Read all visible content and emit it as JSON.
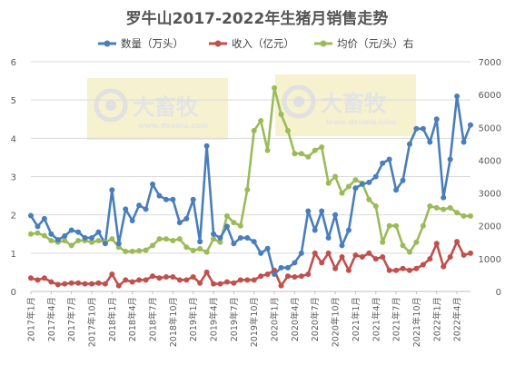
{
  "chart_data": {
    "type": "line",
    "title": "罗牛山2017-2022年生猪月销售走势",
    "x": [
      "2017年1月",
      "2017年2月",
      "2017年3月",
      "2017年4月",
      "2017年5月",
      "2017年6月",
      "2017年7月",
      "2017年8月",
      "2017年9月",
      "2017年10月",
      "2017年11月",
      "2017年12月",
      "2018年1月",
      "2018年2月",
      "2018年3月",
      "2018年4月",
      "2018年5月",
      "2018年6月",
      "2018年7月",
      "2018年8月",
      "2018年9月",
      "2018年10月",
      "2018年11月",
      "2018年12月",
      "2019年1月",
      "2019年2月",
      "2019年3月",
      "2019年4月",
      "2019年5月",
      "2019年6月",
      "2019年7月",
      "2019年8月",
      "2019年9月",
      "2019年10月",
      "2019年11月",
      "2019年12月",
      "2020年1月",
      "2020年2月",
      "2020年3月",
      "2020年4月",
      "2020年5月",
      "2020年6月",
      "2020年7月",
      "2020年8月",
      "2020年9月",
      "2020年10月",
      "2020年11月",
      "2020年12月",
      "2021年1月",
      "2021年2月",
      "2021年3月",
      "2021年4月",
      "2021年5月",
      "2021年6月",
      "2021年7月",
      "2021年8月",
      "2021年9月",
      "2021年10月",
      "2021年11月",
      "2021年12月",
      "2022年1月",
      "2022年2月",
      "2022年3月",
      "2022年4月",
      "2022年5月",
      "2022年6月"
    ],
    "x_tick_labels": [
      "2017年1月",
      "2017年4月",
      "2017年7月",
      "2017年10月",
      "2018年1月",
      "2018年4月",
      "2018年7月",
      "2018年10月",
      "2019年1月",
      "2019年4月",
      "2019年7月",
      "2019年10月",
      "2020年1月",
      "2020年4月",
      "2020年7月",
      "2020年10月",
      "2021年1月",
      "2021年4月",
      "2021年7月",
      "2021年10月",
      "2022年1月",
      "2022年4月"
    ],
    "y_left_ticks": [
      "0",
      "1",
      "2",
      "3",
      "4",
      "5",
      "6"
    ],
    "y_right_ticks": [
      "0",
      "1000",
      "2000",
      "3000",
      "4000",
      "5000",
      "6000",
      "7000"
    ],
    "ylim_left": [
      0,
      6
    ],
    "ylim_right": [
      0,
      7000
    ],
    "legend_position": "top",
    "series": [
      {
        "name": "数量（万头）",
        "axis": "left",
        "color": "#4a7ebb",
        "values": [
          1.98,
          1.7,
          1.9,
          1.5,
          1.35,
          1.45,
          1.6,
          1.55,
          1.4,
          1.4,
          1.55,
          1.25,
          2.65,
          1.25,
          2.15,
          1.85,
          2.25,
          2.15,
          2.8,
          2.5,
          2.4,
          2.4,
          1.8,
          1.9,
          2.4,
          1.3,
          3.8,
          1.5,
          1.4,
          1.7,
          1.25,
          1.4,
          1.4,
          1.3,
          1.0,
          1.12,
          0.45,
          0.62,
          0.62,
          0.75,
          1.0,
          2.1,
          1.6,
          2.1,
          1.4,
          2.0,
          1.2,
          1.6,
          2.7,
          2.8,
          2.85,
          3.0,
          3.35,
          3.45,
          2.65,
          2.9,
          3.85,
          4.25,
          4.25,
          3.9,
          4.5,
          2.45,
          3.45,
          5.1,
          3.9,
          4.35
        ]
      },
      {
        "name": "收入（亿元）",
        "axis": "left",
        "color": "#c0504d",
        "values": [
          0.35,
          0.3,
          0.35,
          0.25,
          0.18,
          0.2,
          0.22,
          0.22,
          0.2,
          0.2,
          0.22,
          0.2,
          0.45,
          0.15,
          0.3,
          0.25,
          0.3,
          0.3,
          0.4,
          0.35,
          0.38,
          0.38,
          0.3,
          0.3,
          0.38,
          0.22,
          0.5,
          0.2,
          0.2,
          0.25,
          0.22,
          0.3,
          0.3,
          0.3,
          0.4,
          0.45,
          0.55,
          0.15,
          0.4,
          0.38,
          0.4,
          0.45,
          1.0,
          0.75,
          1.0,
          0.6,
          0.9,
          0.55,
          0.95,
          0.9,
          1.0,
          0.85,
          0.9,
          0.55,
          0.55,
          0.6,
          0.55,
          0.6,
          0.7,
          0.85,
          1.25,
          0.65,
          0.9,
          1.3,
          0.95,
          1.0
        ]
      },
      {
        "name": "均价（元/头）右",
        "axis": "right",
        "color": "#9bbb59",
        "values": [
          1750,
          1780,
          1700,
          1550,
          1500,
          1550,
          1400,
          1550,
          1550,
          1500,
          1550,
          1500,
          1600,
          1350,
          1220,
          1220,
          1240,
          1260,
          1400,
          1600,
          1600,
          1550,
          1600,
          1350,
          1250,
          1300,
          1200,
          1600,
          1500,
          2300,
          2100,
          2000,
          3100,
          4900,
          5200,
          4300,
          6200,
          5400,
          4900,
          4200,
          4200,
          4100,
          4300,
          4400,
          3300,
          3500,
          3000,
          3200,
          3400,
          3300,
          2800,
          2600,
          1500,
          2000,
          2000,
          1400,
          1200,
          1500,
          2000,
          2600,
          2550,
          2500,
          2550,
          2400,
          2300,
          2300
        ]
      }
    ]
  },
  "watermark": {
    "brand": "大畜牧",
    "site": "www.dxumu.com"
  }
}
